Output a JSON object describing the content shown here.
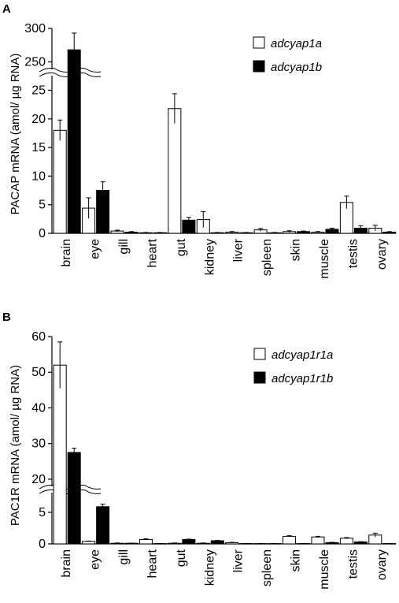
{
  "chart_data": [
    {
      "panel": "A",
      "type": "bar",
      "ylabel": "PACAP mRNA (amol/ µg RNA)",
      "categories": [
        "brain",
        "eye",
        "gill",
        "heart",
        "gut",
        "kidney",
        "liver",
        "spleen",
        "skin",
        "muscle",
        "testis",
        "ovary"
      ],
      "series": [
        {
          "name": "adcyap1a",
          "color": "#ffffff",
          "values": [
            18.0,
            4.4,
            0.4,
            0.1,
            21.8,
            2.4,
            0.2,
            0.6,
            0.3,
            0.2,
            5.4,
            0.9
          ],
          "errors": [
            1.8,
            1.8,
            0.15,
            0.05,
            2.6,
            1.4,
            0.1,
            0.25,
            0.15,
            0.1,
            1.1,
            0.5
          ]
        },
        {
          "name": "adcyap1b",
          "color": "#000000",
          "values": [
            268,
            7.5,
            0.2,
            0.1,
            2.3,
            0.1,
            0.1,
            0.1,
            0.3,
            0.7,
            0.9,
            0.2
          ],
          "errors": [
            25,
            1.5,
            0.1,
            0.05,
            0.5,
            0.05,
            0.05,
            0.05,
            0.1,
            0.2,
            0.4,
            0.1
          ]
        }
      ],
      "y_axis_break": {
        "lower_range": [
          0,
          27
        ],
        "upper_range": [
          240,
          300
        ]
      },
      "lower_ticks": [
        0,
        5,
        10,
        15,
        20,
        25
      ],
      "upper_ticks": [
        250,
        300
      ],
      "legend_position": "top-right"
    },
    {
      "panel": "B",
      "type": "bar",
      "ylabel": "PAC1R mRNA (amol/ µg RNA)",
      "categories": [
        "brain",
        "eye",
        "gill",
        "heart",
        "gut",
        "kidney",
        "liver",
        "spleen",
        "skin",
        "muscle",
        "testis",
        "ovary"
      ],
      "series": [
        {
          "name": "adcyap1r1a",
          "color": "#ffffff",
          "values": [
            52,
            0.4,
            0.1,
            0.7,
            0.1,
            0.1,
            0.2,
            0.05,
            1.2,
            1.1,
            0.9,
            1.4
          ],
          "errors": [
            6.5,
            0.05,
            0.05,
            0.1,
            0.05,
            0.05,
            0.05,
            0.02,
            0.1,
            0.1,
            0.1,
            0.3
          ]
        },
        {
          "name": "adcyap1r1b",
          "color": "#000000",
          "values": [
            27.5,
            5.9,
            0.1,
            0.05,
            0.7,
            0.5,
            0.05,
            0.05,
            0.05,
            0.2,
            0.3,
            0.05
          ],
          "errors": [
            1.2,
            0.4,
            0.02,
            0.02,
            0.05,
            0.05,
            0.02,
            0.02,
            0.02,
            0.05,
            0.05,
            0.02
          ]
        }
      ],
      "y_axis_break": {
        "lower_range": [
          0,
          8
        ],
        "upper_range": [
          18,
          60
        ]
      },
      "lower_ticks": [
        0,
        5
      ],
      "upper_ticks": [
        20,
        30,
        40,
        50,
        60
      ],
      "legend_position": "top-right"
    }
  ]
}
